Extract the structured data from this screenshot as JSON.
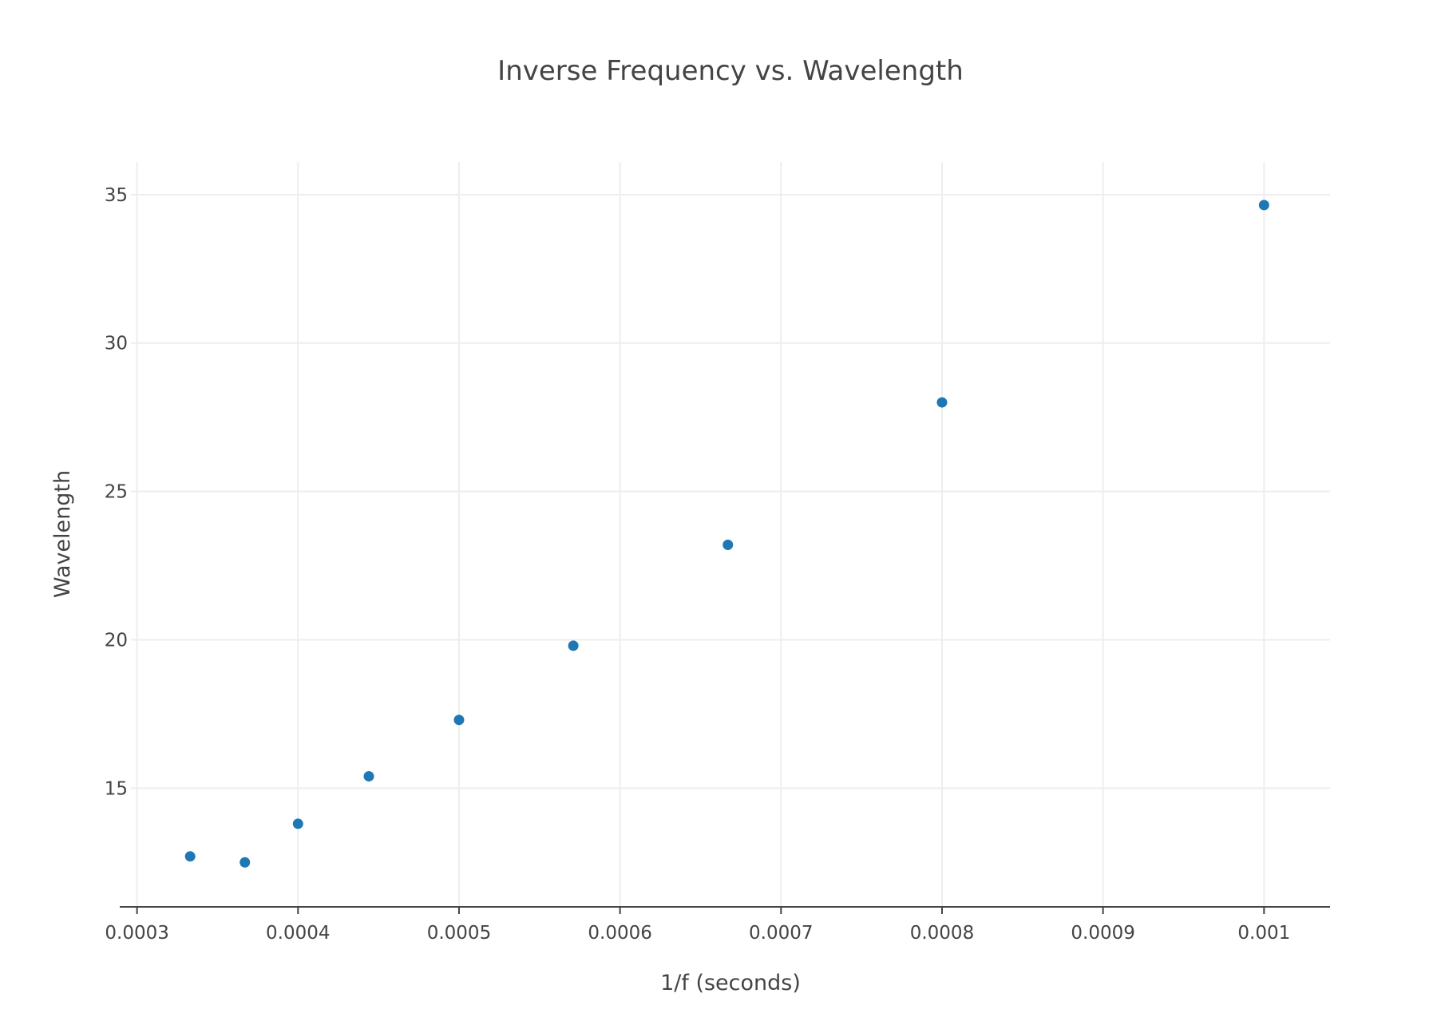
{
  "chart_data": {
    "type": "scatter",
    "title": "Inverse Frequency vs. Wavelength",
    "xlabel": "1/f (seconds)",
    "ylabel": "Wavelength",
    "xlim": [
      0.00029622,
      0.001041
    ],
    "ylim": [
      11.0,
      36.1
    ],
    "x_ticks": [
      0.0003,
      0.0004,
      0.0005,
      0.0006,
      0.0007,
      0.0008,
      0.0009,
      0.001
    ],
    "x_tick_labels": [
      "0.0003",
      "0.0004",
      "0.0005",
      "0.0006",
      "0.0007",
      "0.0008",
      "0.0009",
      "0.001"
    ],
    "y_ticks": [
      15,
      20,
      25,
      30,
      35
    ],
    "y_tick_labels": [
      "15",
      "20",
      "25",
      "30",
      "35"
    ],
    "grid": true,
    "marker_color": "#1f77b4",
    "series": [
      {
        "x": [
          0.000333,
          0.000367,
          0.0004,
          0.000444,
          0.0005,
          0.000571,
          0.000667,
          0.0008,
          0.001
        ],
        "y": [
          12.7,
          12.5,
          13.8,
          15.4,
          17.3,
          19.8,
          23.2,
          28.0,
          34.65
        ]
      }
    ]
  }
}
